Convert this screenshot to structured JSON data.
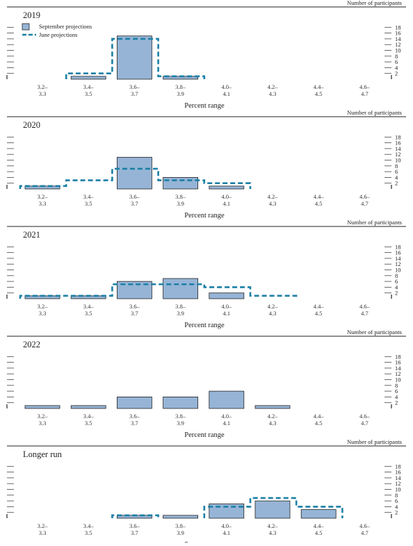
{
  "colors": {
    "bar_fill": "#96b4d6",
    "bar_stroke": "#222222",
    "june_line": "#1a7fa6",
    "axis": "#222222"
  },
  "chart_data": [
    {
      "type": "bar",
      "title": "2019",
      "ylabel": "Number of participants",
      "xlabel": "Percent range",
      "ylim": [
        0,
        18
      ],
      "yticks": [
        2,
        4,
        6,
        8,
        10,
        12,
        14,
        16,
        18
      ],
      "categories": [
        "3.2–3.3",
        "3.4–3.5",
        "3.6–3.7",
        "3.8–3.9",
        "4.0–4.1",
        "4.2–4.3",
        "4.4–4.5",
        "4.6–4.7"
      ],
      "category_labels": [
        [
          "3.2–",
          "3.3"
        ],
        [
          "3.4–",
          "3.5"
        ],
        [
          "3.6–",
          "3.7"
        ],
        [
          "3.8–",
          "3.9"
        ],
        [
          "4.0–",
          "4.1"
        ],
        [
          "4.2–",
          "4.3"
        ],
        [
          "4.4–",
          "4.5"
        ],
        [
          "4.6–",
          "4.7"
        ]
      ],
      "legend": [
        "September projections",
        "June projections"
      ],
      "series": [
        {
          "name": "September projections",
          "style": "bar",
          "values": [
            0,
            1,
            15,
            1,
            0,
            0,
            0,
            0
          ]
        },
        {
          "name": "June projections",
          "style": "dashed-step",
          "values": [
            0,
            2,
            14,
            1,
            0,
            0,
            0,
            0
          ]
        }
      ]
    },
    {
      "type": "bar",
      "title": "2020",
      "ylabel": "Number of participants",
      "xlabel": "Percent range",
      "ylim": [
        0,
        18
      ],
      "yticks": [
        2,
        4,
        6,
        8,
        10,
        12,
        14,
        16,
        18
      ],
      "categories": [
        "3.2–3.3",
        "3.4–3.5",
        "3.6–3.7",
        "3.8–3.9",
        "4.0–4.1",
        "4.2–4.3",
        "4.4–4.5",
        "4.6–4.7"
      ],
      "category_labels": [
        [
          "3.2–",
          "3.3"
        ],
        [
          "3.4–",
          "3.5"
        ],
        [
          "3.6–",
          "3.7"
        ],
        [
          "3.8–",
          "3.9"
        ],
        [
          "4.0–",
          "4.1"
        ],
        [
          "4.2–",
          "4.3"
        ],
        [
          "4.4–",
          "4.5"
        ],
        [
          "4.6–",
          "4.7"
        ]
      ],
      "series": [
        {
          "name": "September projections",
          "style": "bar",
          "values": [
            1,
            0,
            11,
            4,
            1,
            0,
            0,
            0
          ]
        },
        {
          "name": "June projections",
          "style": "dashed-step",
          "values": [
            1,
            3,
            7,
            3,
            2,
            0,
            0,
            0
          ]
        }
      ]
    },
    {
      "type": "bar",
      "title": "2021",
      "ylabel": "Number of participants",
      "xlabel": "Percent range",
      "ylim": [
        0,
        18
      ],
      "yticks": [
        2,
        4,
        6,
        8,
        10,
        12,
        14,
        16,
        18
      ],
      "categories": [
        "3.2–3.3",
        "3.4–3.5",
        "3.6–3.7",
        "3.8–3.9",
        "4.0–4.1",
        "4.2–4.3",
        "4.4–4.5",
        "4.6–4.7"
      ],
      "category_labels": [
        [
          "3.2–",
          "3.3"
        ],
        [
          "3.4–",
          "3.5"
        ],
        [
          "3.6–",
          "3.7"
        ],
        [
          "3.8–",
          "3.9"
        ],
        [
          "4.0–",
          "4.1"
        ],
        [
          "4.2–",
          "4.3"
        ],
        [
          "4.4–",
          "4.5"
        ],
        [
          "4.6–",
          "4.7"
        ]
      ],
      "series": [
        {
          "name": "September projections",
          "style": "bar",
          "values": [
            1,
            1,
            6,
            7,
            2,
            0,
            0,
            0
          ]
        },
        {
          "name": "June projections",
          "style": "dashed-step",
          "values": [
            1,
            1,
            5,
            5,
            4,
            1,
            0,
            0
          ]
        }
      ]
    },
    {
      "type": "bar",
      "title": "2022",
      "ylabel": "Number of participants",
      "xlabel": "Percent range",
      "ylim": [
        0,
        18
      ],
      "yticks": [
        2,
        4,
        6,
        8,
        10,
        12,
        14,
        16,
        18
      ],
      "categories": [
        "3.2–3.3",
        "3.4–3.5",
        "3.6–3.7",
        "3.8–3.9",
        "4.0–4.1",
        "4.2–4.3",
        "4.4–4.5",
        "4.6–4.7"
      ],
      "category_labels": [
        [
          "3.2–",
          "3.3"
        ],
        [
          "3.4–",
          "3.5"
        ],
        [
          "3.6–",
          "3.7"
        ],
        [
          "3.8–",
          "3.9"
        ],
        [
          "4.0–",
          "4.1"
        ],
        [
          "4.2–",
          "4.3"
        ],
        [
          "4.4–",
          "4.5"
        ],
        [
          "4.6–",
          "4.7"
        ]
      ],
      "series": [
        {
          "name": "September projections",
          "style": "bar",
          "values": [
            1,
            1,
            4,
            4,
            6,
            1,
            0,
            0
          ]
        }
      ]
    },
    {
      "type": "bar",
      "title": "Longer run",
      "ylabel": "Number of participants",
      "xlabel": "Percent range",
      "ylim": [
        0,
        18
      ],
      "yticks": [
        2,
        4,
        6,
        8,
        10,
        12,
        14,
        16,
        18
      ],
      "categories": [
        "3.2–3.3",
        "3.4–3.5",
        "3.6–3.7",
        "3.8–3.9",
        "4.0–4.1",
        "4.2–4.3",
        "4.4–4.5",
        "4.6–4.7"
      ],
      "category_labels": [
        [
          "3.2–",
          "3.3"
        ],
        [
          "3.4–",
          "3.5"
        ],
        [
          "3.6–",
          "3.7"
        ],
        [
          "3.8–",
          "3.9"
        ],
        [
          "4.0–",
          "4.1"
        ],
        [
          "4.2–",
          "4.3"
        ],
        [
          "4.4–",
          "4.5"
        ],
        [
          "4.6–",
          "4.7"
        ]
      ],
      "series": [
        {
          "name": "September projections",
          "style": "bar",
          "values": [
            0,
            0,
            1,
            1,
            5,
            6,
            3,
            0
          ]
        },
        {
          "name": "June projections",
          "style": "dashed-step",
          "values": [
            0,
            0,
            1,
            0,
            4,
            7,
            4,
            0
          ]
        }
      ]
    }
  ]
}
